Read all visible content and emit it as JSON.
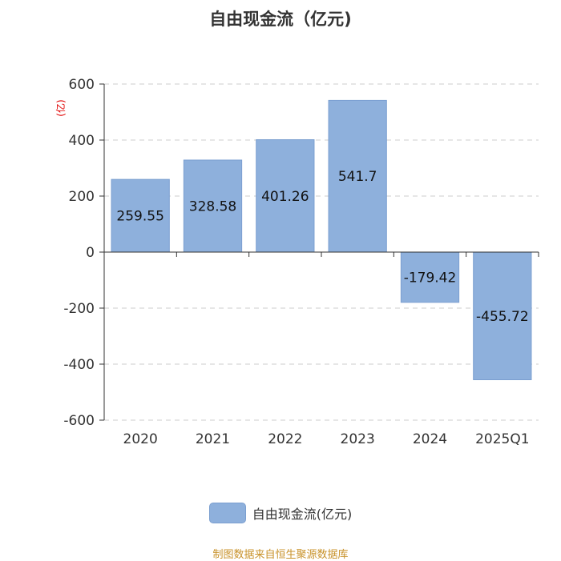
{
  "chart_data": {
    "type": "bar",
    "title": "自由现金流（亿元)",
    "ylabel": "(亿)",
    "xlabel": "",
    "categories": [
      "2020",
      "2021",
      "2022",
      "2023",
      "2024",
      "2025Q1"
    ],
    "series": [
      {
        "name": "自由现金流(亿元)",
        "values": [
          259.55,
          328.58,
          401.26,
          541.7,
          -179.42,
          -455.72
        ]
      }
    ],
    "data_labels": [
      "259.55",
      "328.58",
      "401.26",
      "541.7",
      "-179.42",
      "-455.72"
    ],
    "yticks": [
      600,
      400,
      200,
      0,
      -200,
      -400,
      -600
    ],
    "ylim": [
      -600,
      600
    ],
    "grid": true,
    "legend_position": "bottom",
    "colors": {
      "bar": "#8eb0dc",
      "bar_stroke": "#7b9fd0",
      "axis": "#333333",
      "grid": "#cccccc",
      "ylabel": "#e00000"
    }
  },
  "footer": {
    "source": "制图数据来自恒生聚源数据库"
  }
}
